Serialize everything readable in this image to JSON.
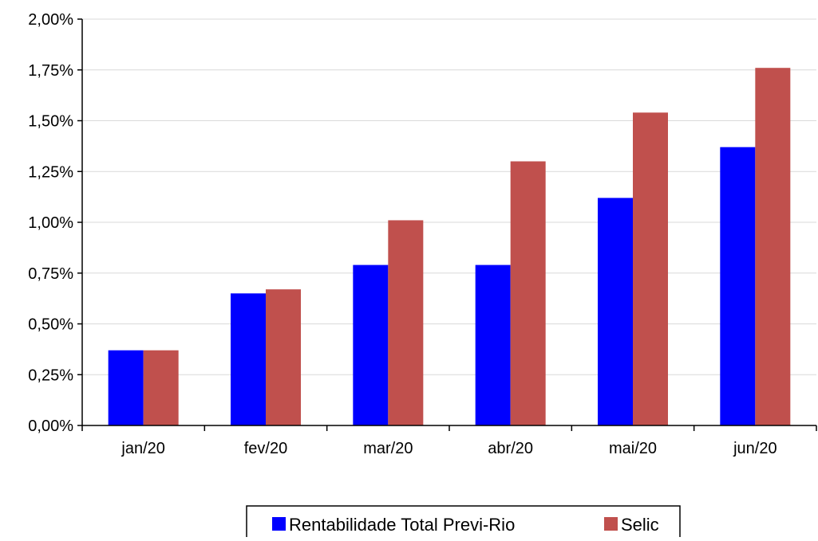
{
  "chart_data": {
    "type": "bar",
    "categories": [
      "jan/20",
      "fev/20",
      "mar/20",
      "abr/20",
      "mai/20",
      "jun/20"
    ],
    "series": [
      {
        "name": "Rentabilidade Total Previ-Rio",
        "values": [
          0.37,
          0.65,
          0.79,
          0.79,
          1.12,
          1.37
        ],
        "color": "#0000FF"
      },
      {
        "name": "Selic",
        "values": [
          0.37,
          0.67,
          1.01,
          1.3,
          1.54,
          1.76
        ],
        "color": "#C0504D"
      }
    ],
    "y_ticks": [
      "0,00%",
      "0,25%",
      "0,50%",
      "0,75%",
      "1,00%",
      "1,25%",
      "1,50%",
      "1,75%",
      "2,00%"
    ],
    "ylim": [
      0,
      2.0
    ],
    "y_unit": "%",
    "grid": true,
    "legend_position": "bottom-center",
    "title": "",
    "xlabel": "",
    "ylabel": ""
  }
}
